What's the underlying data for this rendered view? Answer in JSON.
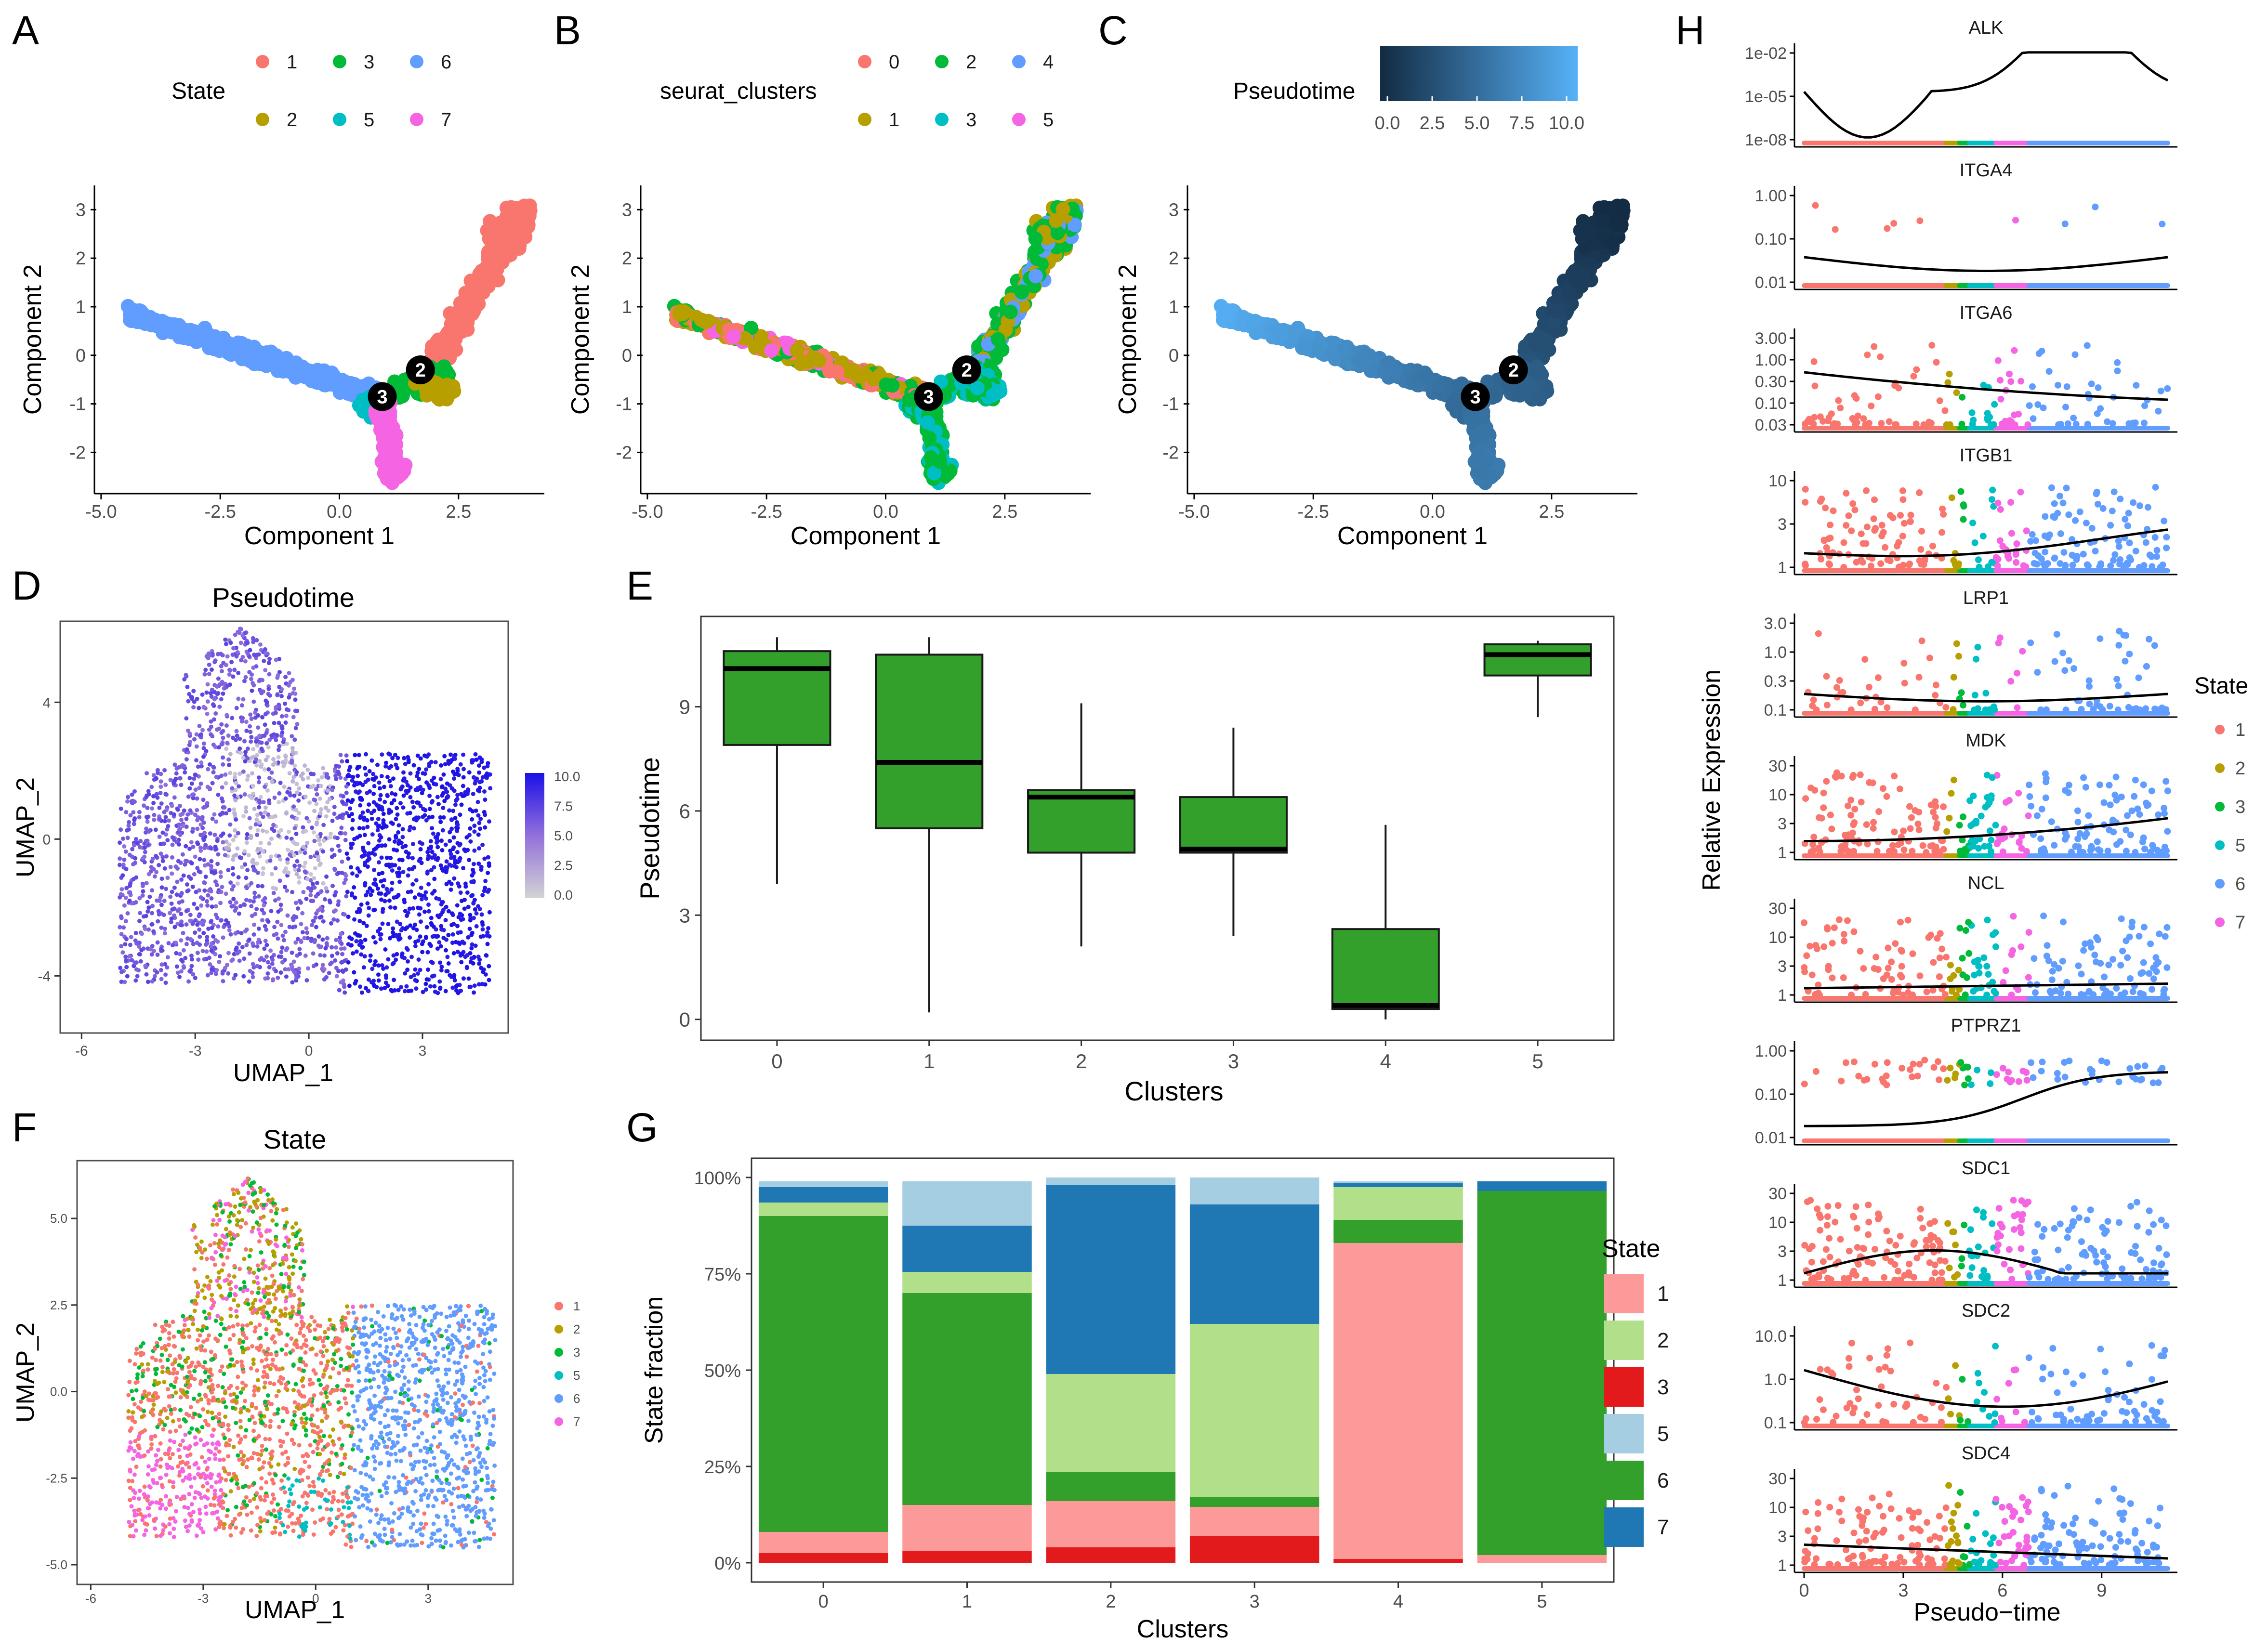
{
  "colors": {
    "s1": "#F8766D",
    "s2": "#B79F00",
    "s3": "#00BA38",
    "s5": "#00BFC4",
    "s6": "#619CFF",
    "s7": "#F564E3",
    "c0": "#F8766D",
    "c1": "#B79F00",
    "c2": "#00BA38",
    "c3": "#00BFC4",
    "c4": "#619CFF",
    "c5": "#F564E3",
    "box_fill": "#33A02C",
    "bar1": "#FB9A99",
    "bar2": "#B2DF8A",
    "bar3": "#E31A1C",
    "bar5": "#A6CEE3",
    "bar6": "#33A02C",
    "bar7": "#1F78B4",
    "pt_dark": "#132B43",
    "pt_light": "#56B1F7",
    "umap_low": "#d3d3d3",
    "umap_mid": "#9370DB",
    "umap_high": "#1a10e6"
  },
  "panel_labels": [
    "A",
    "B",
    "C",
    "D",
    "E",
    "F",
    "G",
    "H"
  ],
  "chart_data": [
    {
      "id": "A",
      "type": "scatter",
      "title": "",
      "legend_title": "State",
      "legend_items": [
        "1",
        "3",
        "6",
        "2",
        "5",
        "7"
      ],
      "xlabel": "Component 1",
      "ylabel": "Component 2",
      "xticks": [
        "-5.0",
        "-2.5",
        "0.0",
        "2.5"
      ],
      "yticks": [
        "3",
        "2",
        "1",
        "0",
        "-1",
        "-2"
      ],
      "xlim": [
        -5.1,
        4.2
      ],
      "ylim": [
        -2.7,
        3.4
      ],
      "branch_nodes": [
        "2",
        "3"
      ],
      "branches": [
        {
          "name": "state6",
          "from": [
            -4.4,
            0.85
          ],
          "to": [
            0.9,
            -0.85
          ]
        },
        {
          "name": "state1",
          "from": [
            1.9,
            -0.3
          ],
          "to": [
            3.8,
            2.9
          ]
        },
        {
          "name": "state7",
          "from": [
            0.9,
            -1.0
          ],
          "to": [
            1.1,
            -2.3
          ]
        }
      ]
    },
    {
      "id": "B",
      "type": "scatter",
      "legend_title": "seurat_clusters",
      "legend_items": [
        "0",
        "2",
        "4",
        "1",
        "3",
        "5"
      ],
      "xlabel": "Component 1",
      "ylabel": "Component 2",
      "xticks": [
        "-5.0",
        "-2.5",
        "0.0",
        "2.5"
      ],
      "yticks": [
        "3",
        "2",
        "1",
        "0",
        "-1",
        "-2"
      ],
      "xlim": [
        -5.1,
        4.2
      ],
      "ylim": [
        -2.7,
        3.4
      ],
      "branch_nodes": [
        "2",
        "3"
      ]
    },
    {
      "id": "C",
      "type": "scatter",
      "legend_title": "Pseudotime",
      "colorbar_ticks": [
        "0.0",
        "2.5",
        "5.0",
        "7.5",
        "10.0"
      ],
      "xlabel": "Component 1",
      "ylabel": "Component 2",
      "xticks": [
        "-5.0",
        "-2.5",
        "0.0",
        "2.5"
      ],
      "yticks": [
        "3",
        "2",
        "1",
        "0",
        "-1",
        "-2"
      ],
      "xlim": [
        -5.1,
        4.2
      ],
      "ylim": [
        -2.7,
        3.4
      ],
      "branch_nodes": [
        "2",
        "3"
      ]
    },
    {
      "id": "D",
      "type": "scatter",
      "title": "Pseudotime",
      "xlabel": "UMAP_1",
      "ylabel": "UMAP_2",
      "xticks": [
        "-6",
        "-3",
        "0",
        "3"
      ],
      "yticks": [
        "4",
        "0",
        "-4"
      ],
      "xlim": [
        -6.5,
        5.2
      ],
      "ylim": [
        -5.6,
        6.3
      ],
      "colorbar_ticks": [
        "10.0",
        "7.5",
        "5.0",
        "2.5",
        "0.0"
      ]
    },
    {
      "id": "E",
      "type": "box",
      "title": "",
      "xlabel": "Clusters",
      "ylabel": "Pseudotime",
      "categories": [
        "0",
        "1",
        "2",
        "3",
        "4",
        "5"
      ],
      "yticks": [
        "9",
        "6",
        "3",
        "0"
      ],
      "ylim": [
        -0.6,
        11.6
      ],
      "boxes": [
        {
          "min": 3.9,
          "q1": 7.9,
          "median": 10.1,
          "q3": 10.6,
          "max": 11.0
        },
        {
          "min": 0.2,
          "q1": 5.5,
          "median": 7.4,
          "q3": 10.5,
          "max": 11.0
        },
        {
          "min": 2.1,
          "q1": 4.8,
          "median": 6.4,
          "q3": 6.6,
          "max": 9.1
        },
        {
          "min": 2.4,
          "q1": 4.8,
          "median": 4.9,
          "q3": 6.4,
          "max": 8.4
        },
        {
          "min": 0.0,
          "q1": 0.3,
          "median": 0.4,
          "q3": 2.6,
          "max": 5.6
        },
        {
          "min": 8.7,
          "q1": 9.9,
          "median": 10.5,
          "q3": 10.8,
          "max": 10.9
        }
      ]
    },
    {
      "id": "F",
      "type": "scatter",
      "title": "State",
      "xlabel": "UMAP_1",
      "ylabel": "UMAP_2",
      "xticks": [
        "-6",
        "-3",
        "0",
        "3"
      ],
      "yticks": [
        "5.0",
        "2.5",
        "0.0",
        "-2.5",
        "-5.0"
      ],
      "xlim": [
        -6.3,
        5.2
      ],
      "ylim": [
        -5.5,
        6.6
      ],
      "legend_items": [
        "1",
        "2",
        "3",
        "5",
        "6",
        "7"
      ]
    },
    {
      "id": "G",
      "type": "stacked_bar",
      "xlabel": "Clusters",
      "ylabel": "State fraction",
      "categories": [
        "0",
        "1",
        "2",
        "3",
        "4",
        "5"
      ],
      "yticks": [
        "100%",
        "75%",
        "50%",
        "25%",
        "0%"
      ],
      "legend_title": "State",
      "legend_items": [
        "1",
        "2",
        "3",
        "5",
        "6",
        "7"
      ],
      "series": [
        {
          "name": "3",
          "values": [
            0.025,
            0.03,
            0.04,
            0.07,
            0.01,
            0.0
          ]
        },
        {
          "name": "1",
          "values": [
            0.055,
            0.12,
            0.12,
            0.075,
            0.82,
            0.02
          ]
        },
        {
          "name": "6",
          "values": [
            0.82,
            0.55,
            0.075,
            0.025,
            0.06,
            0.945
          ]
        },
        {
          "name": "2",
          "values": [
            0.035,
            0.055,
            0.255,
            0.45,
            0.085,
            0.0
          ]
        },
        {
          "name": "7",
          "values": [
            0.04,
            0.12,
            0.49,
            0.31,
            0.01,
            0.025
          ]
        },
        {
          "name": "5",
          "values": [
            0.015,
            0.115,
            0.02,
            0.07,
            0.005,
            0.0
          ]
        }
      ]
    },
    {
      "id": "H",
      "type": "line",
      "xlabel": "Pseudo−time",
      "ylabel": "Relative Expression",
      "xticks": [
        "0",
        "3",
        "6",
        "9"
      ],
      "legend_title": "State",
      "legend_items": [
        "1",
        "2",
        "3",
        "5",
        "6",
        "7"
      ],
      "genes": [
        {
          "name": "ALK",
          "yticks": [
            "1e-02",
            "1e-05",
            "1e-08"
          ]
        },
        {
          "name": "ITGA4",
          "yticks": [
            "1.00",
            "0.10",
            "0.01"
          ]
        },
        {
          "name": "ITGA6",
          "yticks": [
            "3.00",
            "1.00",
            "0.30",
            "0.10",
            "0.03"
          ]
        },
        {
          "name": "ITGB1",
          "yticks": [
            "10",
            "3",
            "1"
          ]
        },
        {
          "name": "LRP1",
          "yticks": [
            "3.0",
            "1.0",
            "0.3",
            "0.1"
          ]
        },
        {
          "name": "MDK",
          "yticks": [
            "30",
            "10",
            "3",
            "1"
          ]
        },
        {
          "name": "NCL",
          "yticks": [
            "30",
            "10",
            "3",
            "1"
          ]
        },
        {
          "name": "PTPRZ1",
          "yticks": [
            "1.00",
            "0.10",
            "0.01"
          ]
        },
        {
          "name": "SDC1",
          "yticks": [
            "30",
            "10",
            "3",
            "1"
          ]
        },
        {
          "name": "SDC2",
          "yticks": [
            "10.0",
            "1.0",
            "0.1"
          ]
        },
        {
          "name": "SDC4",
          "yticks": [
            "30",
            "10",
            "3",
            "1"
          ]
        }
      ]
    }
  ]
}
